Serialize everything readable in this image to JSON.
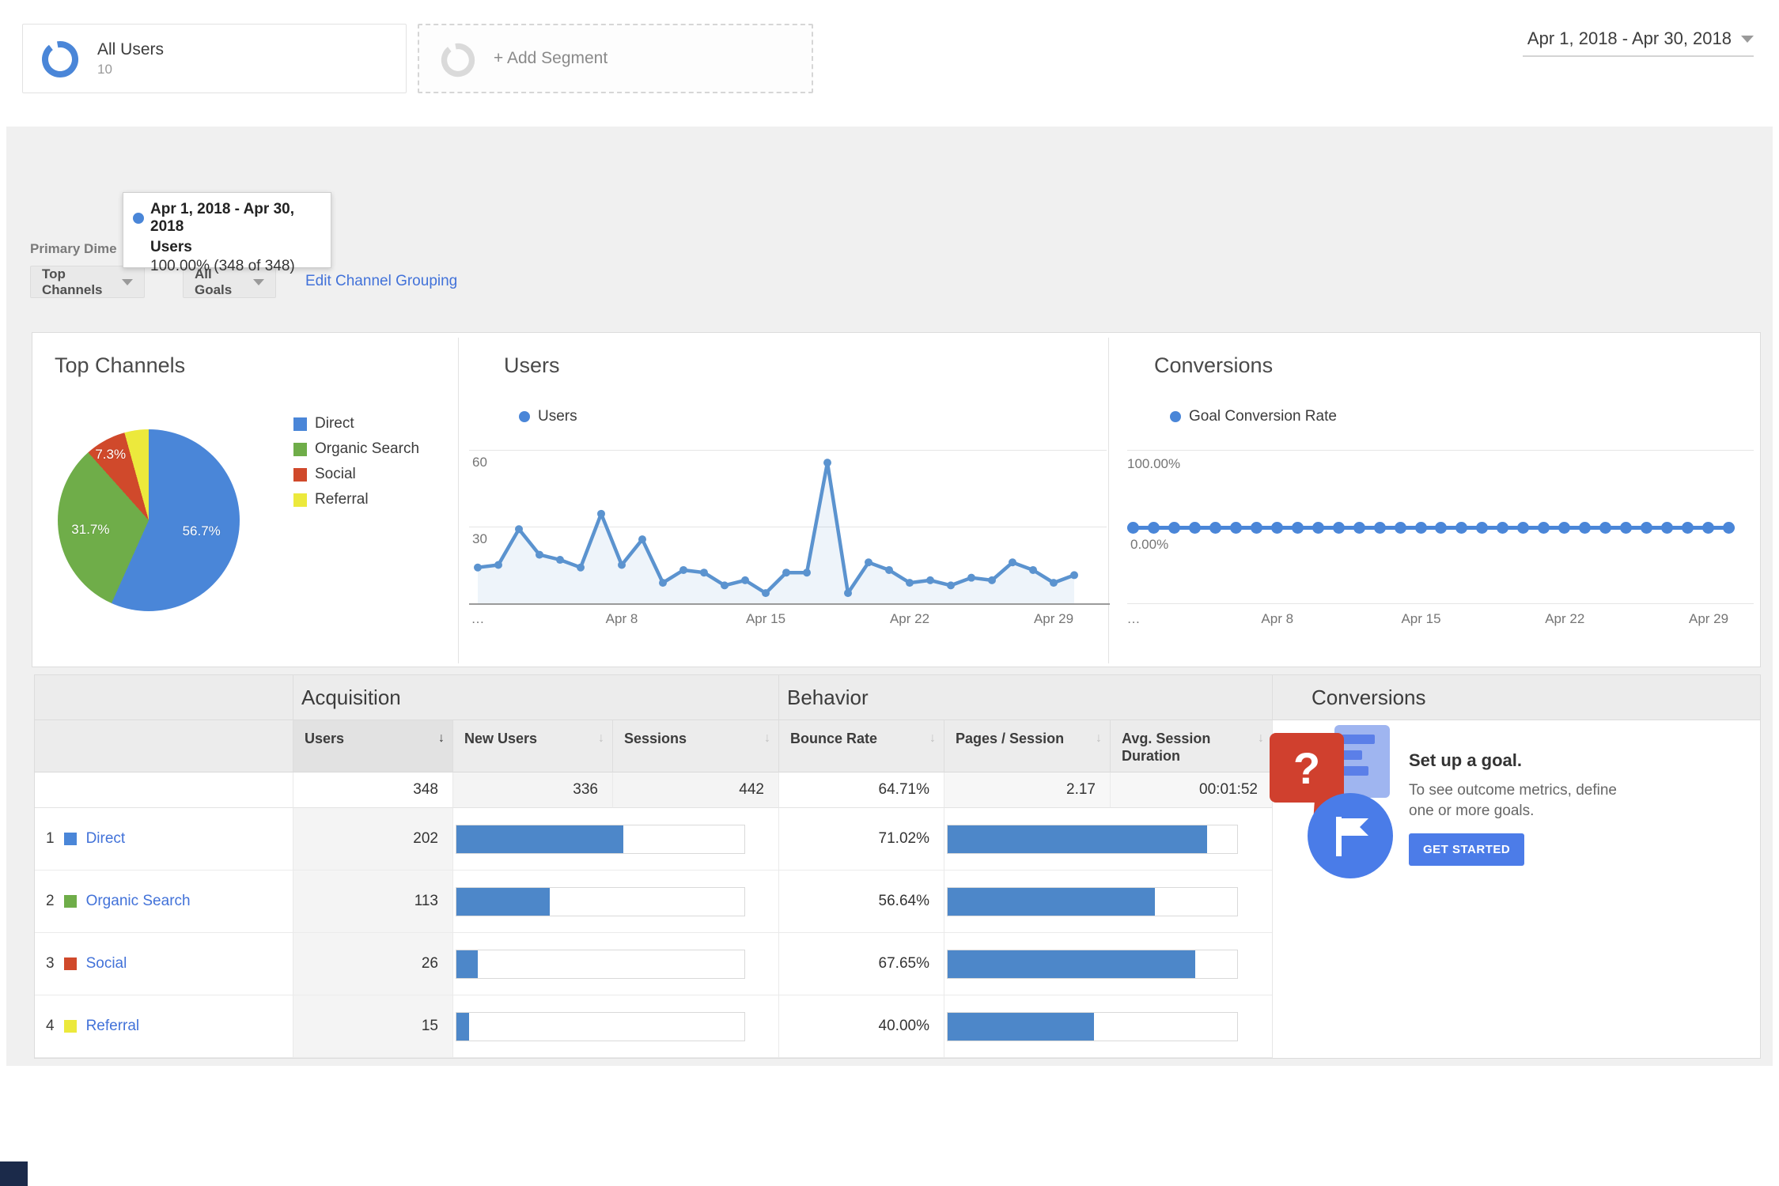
{
  "header": {
    "date_range": "Apr 1, 2018 - Apr 30, 2018",
    "segment_all_users": {
      "title": "All Users",
      "subtitle_clipped": "10"
    },
    "add_segment_label": "+ Add Segment"
  },
  "tooltip": {
    "date_range": "Apr 1, 2018 - Apr 30, 2018",
    "metric": "Users",
    "value": "100.00% (348 of 348)"
  },
  "controls": {
    "primary_dimension_label": "Primary Dime",
    "top_channels_button": "Top Channels",
    "all_goals_button": "All Goals",
    "edit_link": "Edit Channel Grouping"
  },
  "colors": {
    "direct_blue": "#4a86d8",
    "organic_green": "#6fad49",
    "social_orange": "#d0492b",
    "referral_yellow": "#ece93c",
    "line_blue": "#5b93cf",
    "bar_blue": "#4d87c9",
    "link_blue": "#4272d9",
    "button_blue": "#4c7ce8"
  },
  "chart_data": [
    {
      "type": "pie",
      "title": "Top Channels",
      "categories": [
        "Direct",
        "Organic Search",
        "Social",
        "Referral"
      ],
      "values": [
        56.7,
        31.7,
        7.3,
        4.3
      ],
      "labels_shown": [
        "56.7%",
        "31.7%",
        "7.3%"
      ],
      "colors": [
        "#4a86d8",
        "#6fad49",
        "#d0492b",
        "#ece93c"
      ],
      "legend_position": "right"
    },
    {
      "type": "line",
      "title": "Users",
      "legend": "Users",
      "x_range": "Apr 1, 2018 - Apr 30, 2018 (daily)",
      "series": [
        {
          "name": "Users",
          "values": [
            14,
            15,
            29,
            19,
            17,
            14,
            35,
            15,
            25,
            8,
            13,
            12,
            7,
            9,
            4,
            12,
            12,
            55,
            4,
            16,
            13,
            8,
            9,
            7,
            10,
            9,
            16,
            13,
            8,
            11
          ]
        }
      ],
      "xticks": [
        "…",
        "Apr 8",
        "Apr 15",
        "Apr 22",
        "Apr 29"
      ],
      "xtick_indices": [
        0,
        7,
        14,
        21,
        28
      ],
      "yticks": [
        60,
        30
      ],
      "ylim": [
        0,
        65
      ],
      "grid": true
    },
    {
      "type": "line",
      "title": "Conversions",
      "legend": "Goal Conversion Rate",
      "x_range": "Apr 1, 2018 - Apr 30, 2018 (daily)",
      "series": [
        {
          "name": "Goal Conversion Rate",
          "values": [
            0,
            0,
            0,
            0,
            0,
            0,
            0,
            0,
            0,
            0,
            0,
            0,
            0,
            0,
            0,
            0,
            0,
            0,
            0,
            0,
            0,
            0,
            0,
            0,
            0,
            0,
            0,
            0,
            0,
            0
          ]
        }
      ],
      "xticks": [
        "…",
        "Apr 8",
        "Apr 15",
        "Apr 22",
        "Apr 29"
      ],
      "xtick_indices": [
        0,
        7,
        14,
        21,
        28
      ],
      "yticks": [
        "100.00%",
        "0.00%"
      ],
      "grid": true
    }
  ],
  "table": {
    "groups": {
      "acquisition": "Acquisition",
      "behavior": "Behavior",
      "conversions": "Conversions"
    },
    "columns": [
      {
        "label": "Users",
        "sorted": true
      },
      {
        "label": "New Users",
        "sorted": false
      },
      {
        "label": "Sessions",
        "sorted": false
      },
      {
        "label": "Bounce Rate",
        "sorted": false
      },
      {
        "label": "Pages / Session",
        "sorted": false
      },
      {
        "label": "Avg. Session Duration",
        "sorted": false
      }
    ],
    "totals": {
      "users": "348",
      "new_users": "336",
      "sessions": "442",
      "bounce_rate": "64.71%",
      "pages_session": "2.17",
      "avg_duration": "00:01:52"
    },
    "rows": [
      {
        "rank": "1",
        "channel": "Direct",
        "color": "#4a86d8",
        "users": "202",
        "users_bar_pct": 58.0,
        "bounce_rate": "71.02%",
        "bounce_bar_pct": 89.7
      },
      {
        "rank": "2",
        "channel": "Organic Search",
        "color": "#6fad49",
        "users": "113",
        "users_bar_pct": 32.5,
        "bounce_rate": "56.64%",
        "bounce_bar_pct": 71.5
      },
      {
        "rank": "3",
        "channel": "Social",
        "color": "#d0492b",
        "users": "26",
        "users_bar_pct": 7.5,
        "bounce_rate": "67.65%",
        "bounce_bar_pct": 85.4
      },
      {
        "rank": "4",
        "channel": "Referral",
        "color": "#ece93c",
        "users": "15",
        "users_bar_pct": 4.3,
        "bounce_rate": "40.00%",
        "bounce_bar_pct": 50.5
      }
    ]
  },
  "goal_promo": {
    "title": "Set up a goal.",
    "body_line1": "To see outcome metrics, define",
    "body_line2": "one or more goals.",
    "button": "GET STARTED"
  }
}
